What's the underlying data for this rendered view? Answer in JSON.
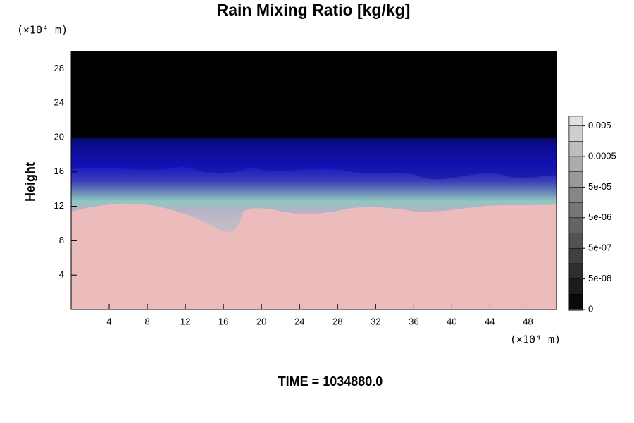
{
  "chart_data": {
    "type": "contour",
    "title": "Rain Mixing Ratio [kg/kg]",
    "ylabel": "Height",
    "xunit": "(×10⁴ m)",
    "yunit": "(×10⁴ m)",
    "time_label": "TIME = 1034880.0",
    "xlim": [
      0,
      51
    ],
    "xticks": [
      4,
      8,
      12,
      16,
      20,
      24,
      28,
      32,
      36,
      40,
      44,
      48
    ],
    "ylim": [
      0,
      30
    ],
    "yticks": [
      4,
      8,
      12,
      16,
      20,
      24,
      28
    ],
    "colorbar_ticks": [
      0,
      {
        "value": 5e-08,
        "label": "5e-08"
      },
      {
        "value": 5e-07,
        "label": "5e-07"
      },
      {
        "value": 5e-06,
        "label": "5e-06"
      },
      {
        "value": 5e-05,
        "label": "5e-05"
      },
      0.0005,
      0.005
    ]
  }
}
